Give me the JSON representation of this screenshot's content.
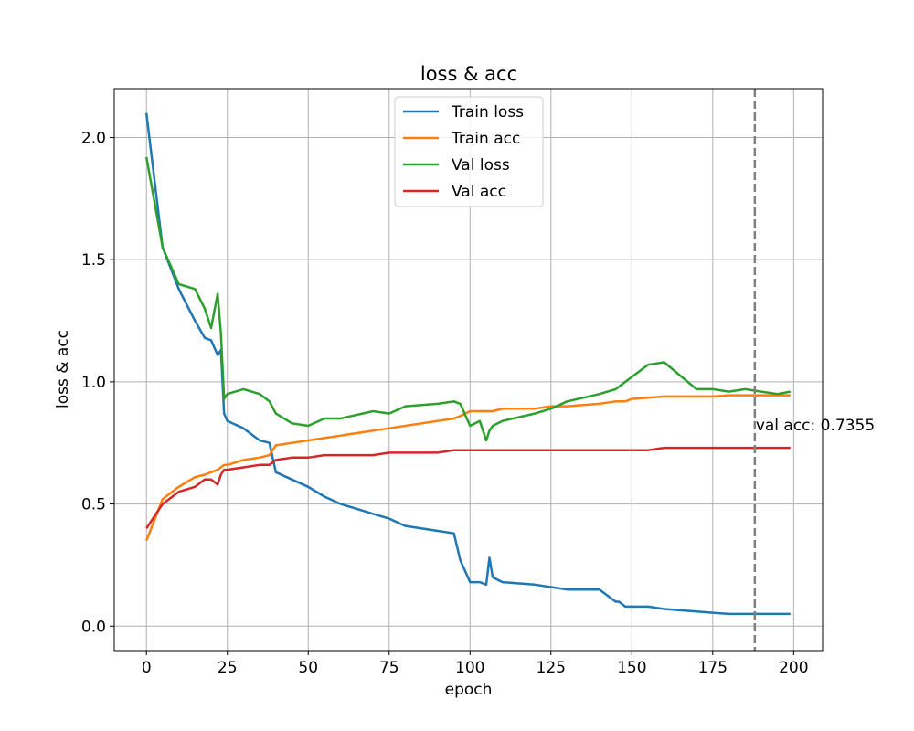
{
  "chart_data": {
    "type": "line",
    "title": "loss & acc",
    "xlabel": "epoch",
    "ylabel": "loss & acc",
    "xlim": [
      -9.95,
      208.95
    ],
    "ylim": [
      -0.1,
      2.2
    ],
    "x_ticks": [
      0,
      25,
      50,
      75,
      100,
      125,
      150,
      175,
      200
    ],
    "y_ticks": [
      0.0,
      0.5,
      1.0,
      1.5,
      2.0
    ],
    "grid": true,
    "legend": "upper center",
    "x": [
      0,
      5,
      10,
      15,
      18,
      20,
      22,
      23,
      24,
      25,
      30,
      35,
      38,
      40,
      45,
      50,
      55,
      60,
      70,
      75,
      80,
      90,
      95,
      97,
      100,
      103,
      105,
      106,
      107,
      110,
      120,
      125,
      130,
      140,
      145,
      146,
      148,
      150,
      155,
      160,
      170,
      175,
      180,
      185,
      190,
      195,
      199
    ],
    "series": [
      {
        "name": "Train loss",
        "color": "#1f77b4",
        "values": [
          2.1,
          1.55,
          1.38,
          1.25,
          1.18,
          1.17,
          1.11,
          1.13,
          0.87,
          0.84,
          0.81,
          0.76,
          0.75,
          0.63,
          0.6,
          0.57,
          0.53,
          0.5,
          0.46,
          0.44,
          0.41,
          0.39,
          0.38,
          0.27,
          0.18,
          0.18,
          0.17,
          0.28,
          0.2,
          0.18,
          0.17,
          0.16,
          0.15,
          0.15,
          0.1,
          0.1,
          0.08,
          0.08,
          0.08,
          0.07,
          0.06,
          0.055,
          0.05,
          0.05,
          0.05,
          0.05,
          0.05
        ]
      },
      {
        "name": "Train acc",
        "color": "#ff7f0e",
        "values": [
          0.35,
          0.52,
          0.57,
          0.61,
          0.62,
          0.63,
          0.64,
          0.65,
          0.66,
          0.66,
          0.68,
          0.69,
          0.7,
          0.74,
          0.75,
          0.76,
          0.77,
          0.78,
          0.8,
          0.81,
          0.82,
          0.84,
          0.85,
          0.86,
          0.88,
          0.88,
          0.88,
          0.88,
          0.88,
          0.89,
          0.89,
          0.9,
          0.9,
          0.91,
          0.92,
          0.92,
          0.92,
          0.93,
          0.935,
          0.94,
          0.94,
          0.94,
          0.945,
          0.945,
          0.945,
          0.945,
          0.945
        ]
      },
      {
        "name": "Val loss",
        "color": "#2ca02c",
        "values": [
          1.92,
          1.55,
          1.4,
          1.38,
          1.3,
          1.22,
          1.36,
          1.2,
          0.93,
          0.95,
          0.97,
          0.95,
          0.92,
          0.87,
          0.83,
          0.82,
          0.85,
          0.85,
          0.88,
          0.87,
          0.9,
          0.91,
          0.92,
          0.91,
          0.82,
          0.84,
          0.76,
          0.8,
          0.82,
          0.84,
          0.87,
          0.89,
          0.92,
          0.95,
          0.97,
          0.98,
          1.0,
          1.02,
          1.07,
          1.08,
          0.97,
          0.97,
          0.96,
          0.97,
          0.96,
          0.95,
          0.96
        ]
      },
      {
        "name": "Val acc",
        "color": "#d62728",
        "values": [
          0.4,
          0.5,
          0.55,
          0.57,
          0.6,
          0.6,
          0.58,
          0.62,
          0.64,
          0.64,
          0.65,
          0.66,
          0.66,
          0.68,
          0.69,
          0.69,
          0.7,
          0.7,
          0.7,
          0.71,
          0.71,
          0.71,
          0.72,
          0.72,
          0.72,
          0.72,
          0.72,
          0.72,
          0.72,
          0.72,
          0.72,
          0.72,
          0.72,
          0.72,
          0.72,
          0.72,
          0.72,
          0.72,
          0.72,
          0.73,
          0.73,
          0.73,
          0.73,
          0.73,
          0.73,
          0.73,
          0.73
        ]
      }
    ],
    "reference_line": {
      "x": 188,
      "style": "dashed",
      "color": "#808080"
    },
    "annotation": {
      "text": "val acc: 0.7355",
      "x": 188,
      "y": 0.79
    }
  }
}
